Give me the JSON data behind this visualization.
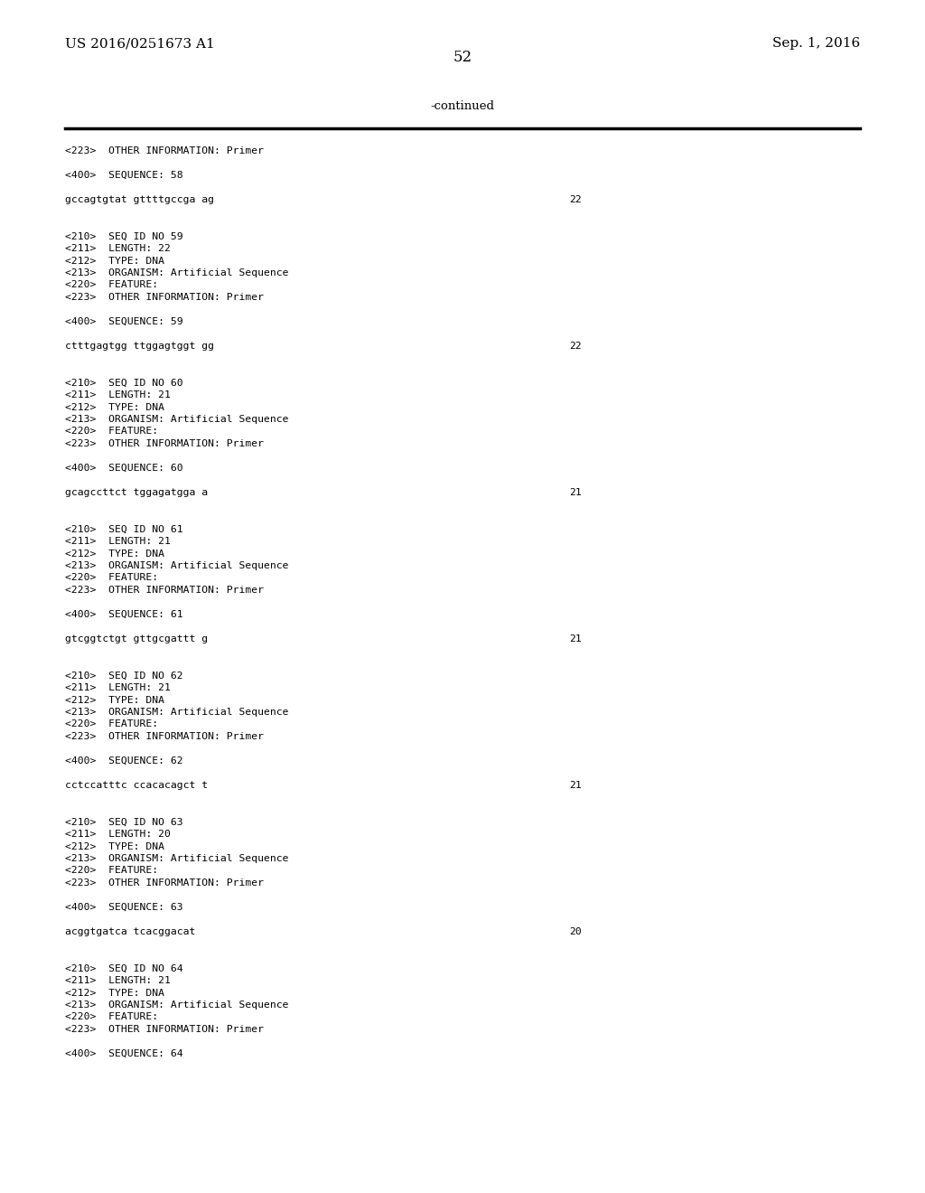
{
  "background_color": "#ffffff",
  "header_left": "US 2016/0251673 A1",
  "header_right": "Sep. 1, 2016",
  "page_number": "52",
  "continued_label": "-continued",
  "content_lines": [
    {
      "text": "<223>  OTHER INFORMATION: Primer",
      "seq_num": null
    },
    {
      "text": "",
      "seq_num": null
    },
    {
      "text": "<400>  SEQUENCE: 58",
      "seq_num": null
    },
    {
      "text": "",
      "seq_num": null
    },
    {
      "text": "gccagtgtat gttttgccga ag",
      "seq_num": "22"
    },
    {
      "text": "",
      "seq_num": null
    },
    {
      "text": "",
      "seq_num": null
    },
    {
      "text": "<210>  SEQ ID NO 59",
      "seq_num": null
    },
    {
      "text": "<211>  LENGTH: 22",
      "seq_num": null
    },
    {
      "text": "<212>  TYPE: DNA",
      "seq_num": null
    },
    {
      "text": "<213>  ORGANISM: Artificial Sequence",
      "seq_num": null
    },
    {
      "text": "<220>  FEATURE:",
      "seq_num": null
    },
    {
      "text": "<223>  OTHER INFORMATION: Primer",
      "seq_num": null
    },
    {
      "text": "",
      "seq_num": null
    },
    {
      "text": "<400>  SEQUENCE: 59",
      "seq_num": null
    },
    {
      "text": "",
      "seq_num": null
    },
    {
      "text": "ctttgagtgg ttggagtggt gg",
      "seq_num": "22"
    },
    {
      "text": "",
      "seq_num": null
    },
    {
      "text": "",
      "seq_num": null
    },
    {
      "text": "<210>  SEQ ID NO 60",
      "seq_num": null
    },
    {
      "text": "<211>  LENGTH: 21",
      "seq_num": null
    },
    {
      "text": "<212>  TYPE: DNA",
      "seq_num": null
    },
    {
      "text": "<213>  ORGANISM: Artificial Sequence",
      "seq_num": null
    },
    {
      "text": "<220>  FEATURE:",
      "seq_num": null
    },
    {
      "text": "<223>  OTHER INFORMATION: Primer",
      "seq_num": null
    },
    {
      "text": "",
      "seq_num": null
    },
    {
      "text": "<400>  SEQUENCE: 60",
      "seq_num": null
    },
    {
      "text": "",
      "seq_num": null
    },
    {
      "text": "gcagccttct tggagatgga a",
      "seq_num": "21"
    },
    {
      "text": "",
      "seq_num": null
    },
    {
      "text": "",
      "seq_num": null
    },
    {
      "text": "<210>  SEQ ID NO 61",
      "seq_num": null
    },
    {
      "text": "<211>  LENGTH: 21",
      "seq_num": null
    },
    {
      "text": "<212>  TYPE: DNA",
      "seq_num": null
    },
    {
      "text": "<213>  ORGANISM: Artificial Sequence",
      "seq_num": null
    },
    {
      "text": "<220>  FEATURE:",
      "seq_num": null
    },
    {
      "text": "<223>  OTHER INFORMATION: Primer",
      "seq_num": null
    },
    {
      "text": "",
      "seq_num": null
    },
    {
      "text": "<400>  SEQUENCE: 61",
      "seq_num": null
    },
    {
      "text": "",
      "seq_num": null
    },
    {
      "text": "gtcggtctgt gttgcgattt g",
      "seq_num": "21"
    },
    {
      "text": "",
      "seq_num": null
    },
    {
      "text": "",
      "seq_num": null
    },
    {
      "text": "<210>  SEQ ID NO 62",
      "seq_num": null
    },
    {
      "text": "<211>  LENGTH: 21",
      "seq_num": null
    },
    {
      "text": "<212>  TYPE: DNA",
      "seq_num": null
    },
    {
      "text": "<213>  ORGANISM: Artificial Sequence",
      "seq_num": null
    },
    {
      "text": "<220>  FEATURE:",
      "seq_num": null
    },
    {
      "text": "<223>  OTHER INFORMATION: Primer",
      "seq_num": null
    },
    {
      "text": "",
      "seq_num": null
    },
    {
      "text": "<400>  SEQUENCE: 62",
      "seq_num": null
    },
    {
      "text": "",
      "seq_num": null
    },
    {
      "text": "cctccatttc ccacacagct t",
      "seq_num": "21"
    },
    {
      "text": "",
      "seq_num": null
    },
    {
      "text": "",
      "seq_num": null
    },
    {
      "text": "<210>  SEQ ID NO 63",
      "seq_num": null
    },
    {
      "text": "<211>  LENGTH: 20",
      "seq_num": null
    },
    {
      "text": "<212>  TYPE: DNA",
      "seq_num": null
    },
    {
      "text": "<213>  ORGANISM: Artificial Sequence",
      "seq_num": null
    },
    {
      "text": "<220>  FEATURE:",
      "seq_num": null
    },
    {
      "text": "<223>  OTHER INFORMATION: Primer",
      "seq_num": null
    },
    {
      "text": "",
      "seq_num": null
    },
    {
      "text": "<400>  SEQUENCE: 63",
      "seq_num": null
    },
    {
      "text": "",
      "seq_num": null
    },
    {
      "text": "acggtgatca tcacggacat",
      "seq_num": "20"
    },
    {
      "text": "",
      "seq_num": null
    },
    {
      "text": "",
      "seq_num": null
    },
    {
      "text": "<210>  SEQ ID NO 64",
      "seq_num": null
    },
    {
      "text": "<211>  LENGTH: 21",
      "seq_num": null
    },
    {
      "text": "<212>  TYPE: DNA",
      "seq_num": null
    },
    {
      "text": "<213>  ORGANISM: Artificial Sequence",
      "seq_num": null
    },
    {
      "text": "<220>  FEATURE:",
      "seq_num": null
    },
    {
      "text": "<223>  OTHER INFORMATION: Primer",
      "seq_num": null
    },
    {
      "text": "",
      "seq_num": null
    },
    {
      "text": "<400>  SEQUENCE: 64",
      "seq_num": null
    }
  ]
}
